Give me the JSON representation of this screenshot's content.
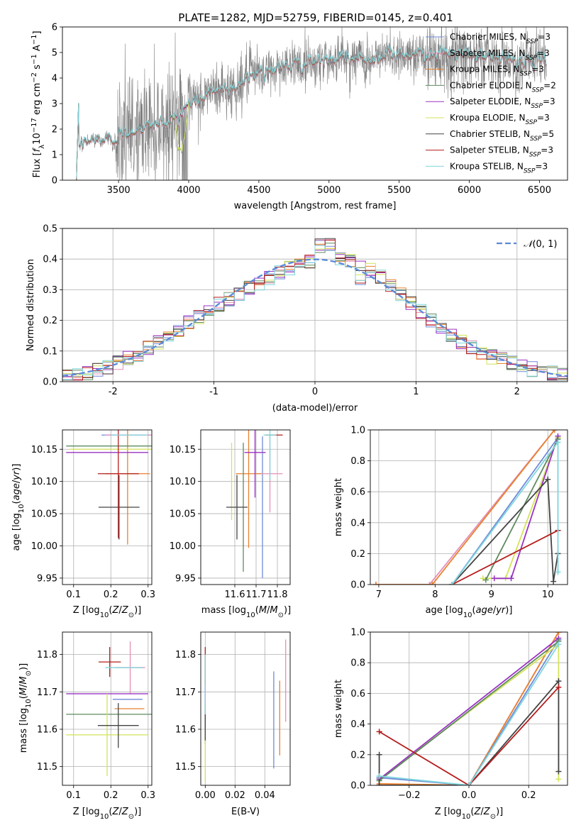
{
  "title": "PLATE=1282, MJD=52759, FIBERID=0145, z=0.401",
  "colors": {
    "CM": "#6f8ad8",
    "SM": "#e58fb6",
    "KM": "#e7812f",
    "CE": "#5f8a5f",
    "SE": "#9a33c3",
    "KE": "#d4e35a",
    "CS": "#444444",
    "SS": "#b51d1d",
    "KS": "#7fd6dc",
    "data": "#808080",
    "gauss": "#5b8ad8"
  },
  "chart_data": [
    {
      "id": "spectrum",
      "type": "line",
      "xlabel": "wavelength [Angstrom, rest frame]",
      "ylabel": "Flux [f_λ10⁻¹⁷ erg cm⁻² s⁻¹ A⁻¹]",
      "xlim": [
        3100,
        6700
      ],
      "ylim": [
        0,
        6
      ],
      "xticks": [
        3500,
        4000,
        4500,
        5000,
        5500,
        6000,
        6500
      ],
      "yticks": [
        0,
        1,
        2,
        3,
        4,
        5,
        6
      ],
      "grid": false,
      "legend_position": "upper right",
      "legend": [
        {
          "label": "Chabrier MILES, N",
          "sub": "SSP",
          "suffix": "=3",
          "key": "CM"
        },
        {
          "label": "Salpeter MILES, N",
          "sub": "SSP",
          "suffix": "=3",
          "key": "SM"
        },
        {
          "label": "Kroupa MILES, N",
          "sub": "SSP",
          "suffix": "=3",
          "key": "KM"
        },
        {
          "label": "Chabrier ELODIE, N",
          "sub": "SSP",
          "suffix": "=2",
          "key": "CE"
        },
        {
          "label": "Salpeter ELODIE, N",
          "sub": "SSP",
          "suffix": "=3",
          "key": "SE"
        },
        {
          "label": "Kroupa ELODIE, N",
          "sub": "SSP",
          "suffix": "=3",
          "key": "KE"
        },
        {
          "label": "Chabrier STELIB, N",
          "sub": "SSP",
          "suffix": "=5",
          "key": "CS"
        },
        {
          "label": "Salpeter STELIB, N",
          "sub": "SSP",
          "suffix": "=3",
          "key": "SS"
        },
        {
          "label": "Kroupa STELIB, N",
          "sub": "SSP",
          "suffix": "=3",
          "key": "KS"
        }
      ],
      "continuum": [
        [
          3200,
          0.0
        ],
        [
          3215,
          1.35
        ],
        [
          3300,
          1.55
        ],
        [
          3450,
          1.6
        ],
        [
          3500,
          1.75
        ],
        [
          3700,
          2.1
        ],
        [
          3850,
          2.3
        ],
        [
          3950,
          2.6
        ],
        [
          4000,
          3.0
        ],
        [
          4100,
          3.2
        ],
        [
          4200,
          3.55
        ],
        [
          4300,
          3.6
        ],
        [
          4400,
          3.85
        ],
        [
          4500,
          4.3
        ],
        [
          4700,
          4.45
        ],
        [
          5000,
          4.7
        ],
        [
          5200,
          4.75
        ],
        [
          5500,
          4.95
        ],
        [
          5800,
          4.95
        ],
        [
          6000,
          4.9
        ],
        [
          6300,
          4.7
        ],
        [
          6500,
          4.65
        ],
        [
          6550,
          4.7
        ]
      ]
    },
    {
      "id": "residuals",
      "type": "histogram",
      "xlabel": "(data-model)/error",
      "ylabel": "Normed distribution",
      "xlim": [
        -2.5,
        2.5
      ],
      "ylim": [
        0,
        0.5
      ],
      "xticks": [
        -2,
        -1,
        0,
        1,
        2
      ],
      "yticks": [
        0.0,
        0.1,
        0.2,
        0.3,
        0.4,
        0.5
      ],
      "grid": true,
      "bin_width": 0.1,
      "legend": [
        {
          "label": "N(0,1)",
          "key": "gauss",
          "style": "dashed"
        }
      ],
      "legend_position": "upper right"
    },
    {
      "id": "age_vs_Z",
      "type": "errorbar",
      "xlabel": "Z [log10(Z/Z⊙)]",
      "ylabel": "age  [log10(age/yr)]",
      "xlim": [
        0.07,
        0.31
      ],
      "ylim": [
        9.94,
        10.18
      ],
      "xticks": [
        0.1,
        0.2,
        0.3
      ],
      "yticks": [
        9.95,
        10.0,
        10.05,
        10.1,
        10.15
      ],
      "grid": true,
      "points": [
        {
          "key": "CM",
          "x": 0.24,
          "xerr": 0.065,
          "y": 10.172,
          "yerr": 0.0
        },
        {
          "key": "SM",
          "x": 0.252,
          "xerr": 0.068,
          "y": 10.172,
          "yerr": 0.0
        },
        {
          "key": "KM",
          "x": 0.245,
          "xerr": 0.06,
          "y": 10.112,
          "yerr": 0.11
        },
        {
          "key": "CE",
          "x": 0.195,
          "xerr": 0.115,
          "y": 10.155,
          "yerr": 0.0
        },
        {
          "key": "SE",
          "x": 0.19,
          "xerr": 0.11,
          "y": 10.145,
          "yerr": 0.0
        },
        {
          "key": "KE",
          "x": 0.2,
          "xerr": 0.11,
          "y": 10.15,
          "yerr": 0.0
        },
        {
          "key": "CS",
          "x": 0.222,
          "xerr": 0.055,
          "y": 10.06,
          "yerr": 0.05
        },
        {
          "key": "SS",
          "x": 0.22,
          "xerr": 0.055,
          "y": 10.112,
          "yerr": 0.1
        },
        {
          "key": "KS",
          "x": 0.25,
          "xerr": 0.05,
          "y": 10.172,
          "yerr": 0.0
        }
      ]
    },
    {
      "id": "age_vs_mass",
      "type": "errorbar",
      "xlabel": "mass [log10(M/M⊙)]",
      "ylabel": "",
      "xlim": [
        11.44,
        11.86
      ],
      "ylim": [
        9.94,
        10.18
      ],
      "xticks": [
        11.6,
        11.7,
        11.8
      ],
      "yticks": [
        9.95,
        10.0,
        10.05,
        10.1,
        10.15
      ],
      "grid": true,
      "points": [
        {
          "key": "CM",
          "x": 11.73,
          "xerr": 0.0,
          "y": 10.06,
          "yerr": 0.11
        },
        {
          "key": "SM",
          "x": 11.765,
          "xerr": 0.06,
          "y": 10.112,
          "yerr": 0.06
        },
        {
          "key": "KM",
          "x": 11.665,
          "xerr": 0.06,
          "y": 10.112,
          "yerr": 0.115
        },
        {
          "key": "CE",
          "x": 11.64,
          "xerr": 0.0,
          "y": 10.06,
          "yerr": 0.1
        },
        {
          "key": "SE",
          "x": 11.695,
          "xerr": 0.05,
          "y": 10.145,
          "yerr": 0.07
        },
        {
          "key": "KE",
          "x": 11.585,
          "xerr": 0.0,
          "y": 10.1,
          "yerr": 0.06
        },
        {
          "key": "CS",
          "x": 11.61,
          "xerr": 0.05,
          "y": 10.06,
          "yerr": 0.05
        },
        {
          "key": "SS",
          "x": 11.785,
          "xerr": 0.04,
          "y": 10.172,
          "yerr": 0.0
        },
        {
          "key": "KS",
          "x": 11.765,
          "xerr": 0.03,
          "y": 10.172,
          "yerr": 0.07
        }
      ]
    },
    {
      "id": "weight_vs_age",
      "type": "line",
      "xlabel": "age  [log10(age/yr)]",
      "ylabel": "mass weight",
      "xlim": [
        6.85,
        10.35
      ],
      "ylim": [
        0,
        1
      ],
      "xticks": [
        7,
        8,
        9,
        10
      ],
      "yticks": [
        0.0,
        0.2,
        0.4,
        0.6,
        0.8,
        1.0
      ],
      "grid": true,
      "series": [
        {
          "key": "SM",
          "x": [
            6.95,
            7.9,
            10.12
          ],
          "y": [
            0.0,
            0.0,
            1.0
          ]
        },
        {
          "key": "KM",
          "x": [
            6.95,
            7.95,
            10.12
          ],
          "y": [
            0.0,
            0.0,
            1.0
          ]
        },
        {
          "key": "CM",
          "x": [
            8.3,
            10.18
          ],
          "y": [
            0.0,
            0.95
          ]
        },
        {
          "key": "KE",
          "x": [
            8.85,
            9.25,
            10.18
          ],
          "y": [
            0.04,
            0.04,
            0.95
          ]
        },
        {
          "key": "SE",
          "x": [
            9.05,
            9.35,
            10.18
          ],
          "y": [
            0.04,
            0.04,
            0.96
          ]
        },
        {
          "key": "CE",
          "x": [
            8.9,
            10.18
          ],
          "y": [
            0.03,
            0.94
          ]
        },
        {
          "key": "CS",
          "x": [
            8.3,
            10.0,
            10.1,
            10.18
          ],
          "y": [
            0.0,
            0.68,
            0.02,
            0.2
          ]
        },
        {
          "key": "SS",
          "x": [
            8.3,
            10.18
          ],
          "y": [
            0.0,
            0.35
          ]
        },
        {
          "key": "KS",
          "x": [
            8.3,
            10.18,
            10.18
          ],
          "y": [
            0.0,
            0.92,
            0.08
          ]
        }
      ]
    },
    {
      "id": "mass_vs_Z",
      "type": "errorbar",
      "xlabel": "Z [log10(Z/Z⊙)]",
      "ylabel": "mass [log10(M/M⊙)]",
      "xlim": [
        0.07,
        0.31
      ],
      "ylim": [
        11.45,
        11.86
      ],
      "xticks": [
        0.1,
        0.2,
        0.3
      ],
      "yticks": [
        11.5,
        11.6,
        11.7,
        11.8
      ],
      "grid": true,
      "points": [
        {
          "key": "CM",
          "x": 0.245,
          "xerr": 0.04,
          "y": 11.68,
          "yerr": 0.0
        },
        {
          "key": "SM",
          "x": 0.252,
          "xerr": 0.04,
          "y": 11.765,
          "yerr": 0.07
        },
        {
          "key": "KM",
          "x": 0.25,
          "xerr": 0.04,
          "y": 11.655,
          "yerr": 0.0
        },
        {
          "key": "CE",
          "x": 0.195,
          "xerr": 0.115,
          "y": 11.64,
          "yerr": 0.0
        },
        {
          "key": "SE",
          "x": 0.19,
          "xerr": 0.11,
          "y": 11.695,
          "yerr": 0.0
        },
        {
          "key": "KE",
          "x": 0.19,
          "xerr": 0.11,
          "y": 11.585,
          "yerr": 0.11
        },
        {
          "key": "CS",
          "x": 0.22,
          "xerr": 0.055,
          "y": 11.61,
          "yerr": 0.06
        },
        {
          "key": "SS",
          "x": 0.197,
          "xerr": 0.03,
          "y": 11.78,
          "yerr": 0.04
        },
        {
          "key": "KS",
          "x": 0.235,
          "xerr": 0.05,
          "y": 11.765,
          "yerr": 0.0
        }
      ]
    },
    {
      "id": "mass_vs_ebv",
      "type": "errorbar",
      "xlabel": "E(B-V)",
      "ylabel": "",
      "xlim": [
        -0.003,
        0.057
      ],
      "ylim": [
        11.45,
        11.86
      ],
      "xticks": [
        0.0,
        0.02,
        0.04
      ],
      "yticks": [
        11.5,
        11.6,
        11.7,
        11.8
      ],
      "grid": true,
      "points": [
        {
          "key": "CM",
          "x": 0.046,
          "xerr": 0.0,
          "y": 11.625,
          "yerr": 0.13
        },
        {
          "key": "SM",
          "x": 0.054,
          "xerr": 0.0,
          "y": 11.73,
          "yerr": 0.11
        },
        {
          "key": "KM",
          "x": 0.05,
          "xerr": 0.0,
          "y": 11.63,
          "yerr": 0.1
        },
        {
          "key": "CE",
          "x": 0.0,
          "xerr": 0.0,
          "y": 11.6,
          "yerr": 0.04
        },
        {
          "key": "SE",
          "x": 0.0,
          "xerr": 0.0,
          "y": 11.7,
          "yerr": 0.03
        },
        {
          "key": "KE",
          "x": 0.0,
          "xerr": 0.0,
          "y": 11.53,
          "yerr": 0.07
        },
        {
          "key": "CS",
          "x": 0.0,
          "xerr": 0.0,
          "y": 11.62,
          "yerr": 0.05
        },
        {
          "key": "SS",
          "x": 0.0,
          "xerr": 0.0,
          "y": 11.77,
          "yerr": 0.05
        },
        {
          "key": "KS",
          "x": 0.0,
          "xerr": 0.0,
          "y": 11.72,
          "yerr": 0.08
        }
      ]
    },
    {
      "id": "weight_vs_Z",
      "type": "line",
      "xlabel": "Z [log10(Z/Z⊙)]",
      "ylabel": "mass weight",
      "xlim": [
        -0.33,
        0.33
      ],
      "ylim": [
        0,
        1
      ],
      "xticks": [
        -0.2,
        0.0,
        0.2
      ],
      "yticks": [
        0.0,
        0.2,
        0.4,
        0.6,
        0.8,
        1.0
      ],
      "grid": true,
      "series": [
        {
          "key": "SM",
          "x": [
            -0.3,
            0.0,
            0.3
          ],
          "y": [
            0.0,
            0.0,
            1.0
          ]
        },
        {
          "key": "KM",
          "x": [
            -0.3,
            0.0,
            0.3
          ],
          "y": [
            0.01,
            0.0,
            1.0
          ]
        },
        {
          "key": "CM",
          "x": [
            -0.3,
            0.0,
            0.3
          ],
          "y": [
            0.05,
            0.0,
            0.95
          ]
        },
        {
          "key": "KE",
          "x": [
            -0.3,
            0.3,
            0.3
          ],
          "y": [
            0.04,
            0.92,
            0.04
          ]
        },
        {
          "key": "SE",
          "x": [
            -0.3,
            0.3
          ],
          "y": [
            0.04,
            0.96
          ]
        },
        {
          "key": "CE",
          "x": [
            -0.3,
            0.3
          ],
          "y": [
            0.03,
            0.94
          ]
        },
        {
          "key": "CS",
          "x": [
            -0.3,
            -0.3,
            0.0,
            0.3,
            0.3
          ],
          "y": [
            0.2,
            0.0,
            0.0,
            0.68,
            0.09
          ]
        },
        {
          "key": "SS",
          "x": [
            -0.3,
            0.0,
            0.3
          ],
          "y": [
            0.35,
            0.0,
            0.64
          ]
        },
        {
          "key": "KS",
          "x": [
            -0.3,
            0.0,
            0.3
          ],
          "y": [
            0.06,
            0.0,
            0.92
          ]
        }
      ]
    }
  ]
}
